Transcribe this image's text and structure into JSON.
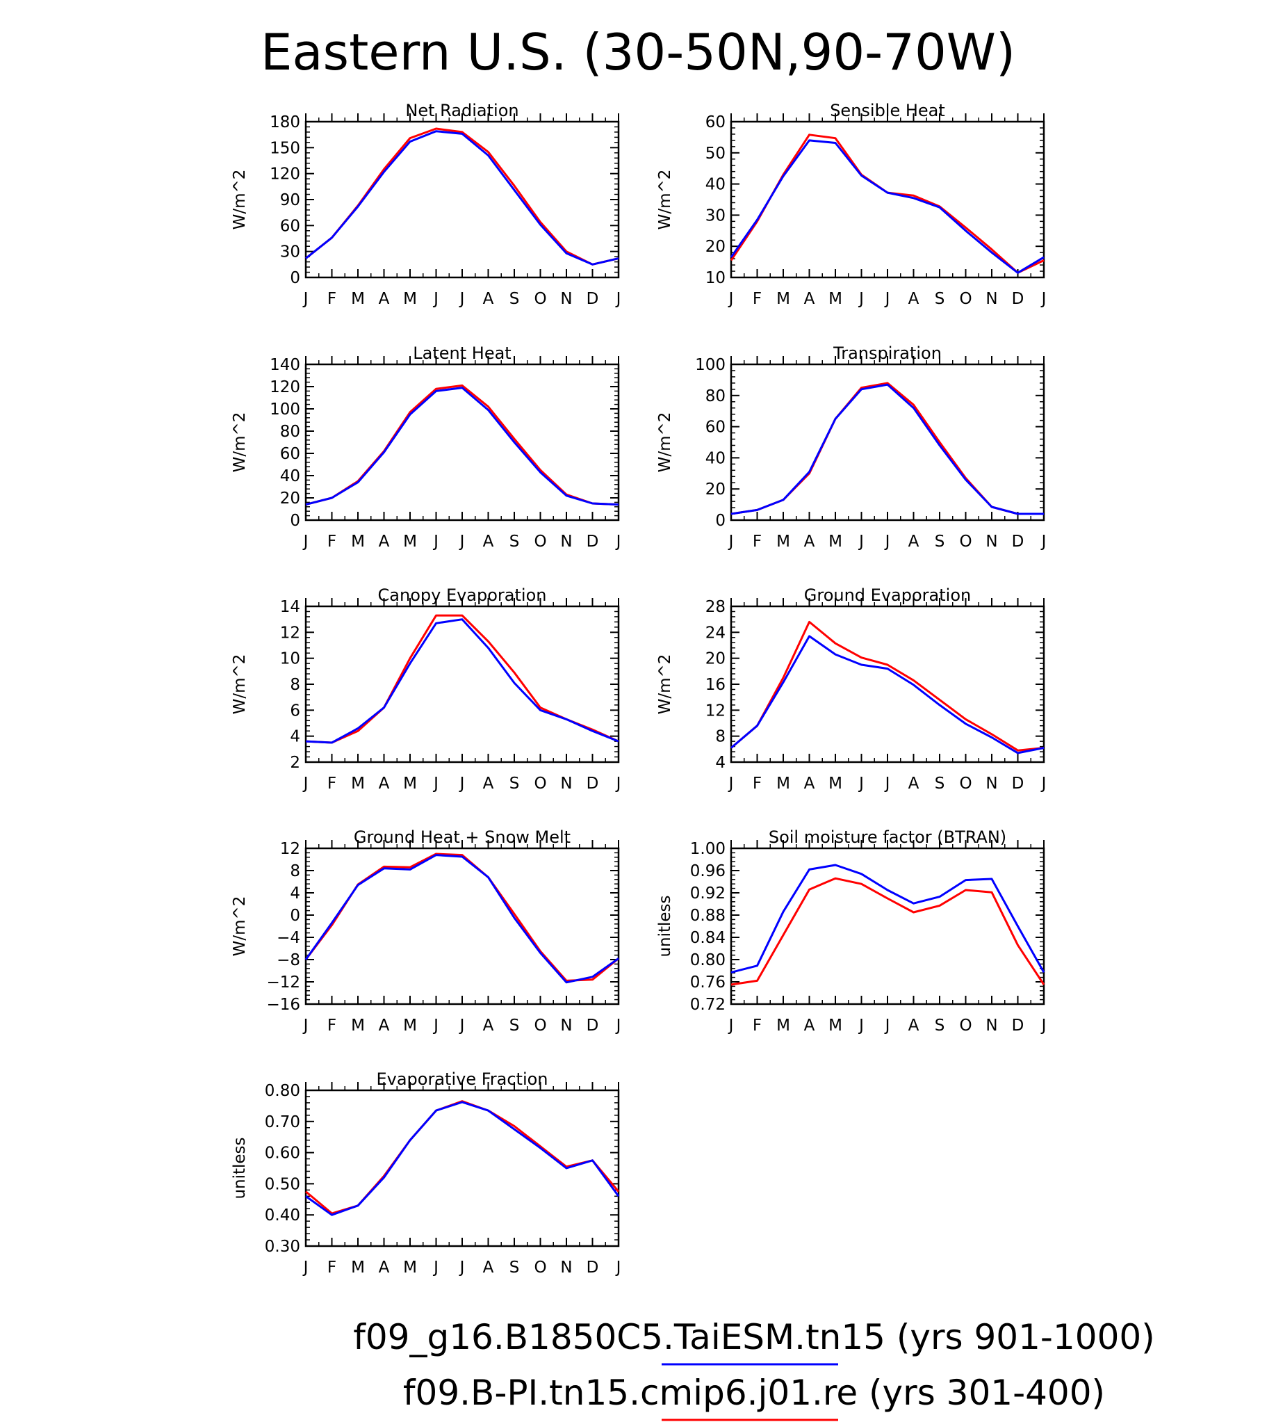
{
  "figure": {
    "title": "Eastern U.S. (30-50N,90-70W)",
    "legend": [
      {
        "label": "f09_g16.B1850C5.TaiESM.tn15 (yrs 901-1000)",
        "color": "#0000ff"
      },
      {
        "label": "f09.B-PI.tn15.cmip6.j01.re (yrs 301-400)",
        "color": "#ff0000"
      }
    ]
  },
  "chart_data": [
    {
      "type": "line",
      "title": "Net Radiation",
      "ylabel": "W/m^2",
      "categories": [
        "J",
        "F",
        "M",
        "A",
        "M",
        "J",
        "J",
        "A",
        "S",
        "O",
        "N",
        "D",
        "J"
      ],
      "ylim": [
        0,
        180
      ],
      "yticks": [
        "0",
        "30",
        "60",
        "90",
        "120",
        "150",
        "180"
      ],
      "series": [
        {
          "color": "#ff0000",
          "values": [
            22,
            46,
            83,
            125,
            161,
            172,
            168,
            145,
            106,
            64,
            30,
            15,
            22
          ]
        },
        {
          "color": "#0000ff",
          "values": [
            22,
            46,
            82,
            122,
            157,
            169,
            166,
            141,
            101,
            61,
            28,
            15,
            22
          ]
        }
      ]
    },
    {
      "type": "line",
      "title": "Sensible Heat",
      "ylabel": "W/m^2",
      "categories": [
        "J",
        "F",
        "M",
        "A",
        "M",
        "J",
        "J",
        "A",
        "S",
        "O",
        "N",
        "D",
        "J"
      ],
      "ylim": [
        10,
        60
      ],
      "yticks": [
        "10",
        "20",
        "30",
        "40",
        "50",
        "60"
      ],
      "series": [
        {
          "color": "#ff0000",
          "values": [
            15.5,
            28,
            43,
            55.8,
            54.7,
            43,
            37.2,
            36.3,
            32.8,
            26,
            19,
            11.5,
            15.5
          ]
        },
        {
          "color": "#0000ff",
          "values": [
            16.5,
            28.5,
            42.5,
            54,
            53.2,
            42.7,
            37.2,
            35.5,
            32.5,
            25,
            18,
            11.5,
            16.5
          ]
        }
      ]
    },
    {
      "type": "line",
      "title": "Latent Heat",
      "ylabel": "W/m^2",
      "categories": [
        "J",
        "F",
        "M",
        "A",
        "M",
        "J",
        "J",
        "A",
        "S",
        "O",
        "N",
        "D",
        "J"
      ],
      "ylim": [
        0,
        140
      ],
      "yticks": [
        "0",
        "20",
        "40",
        "60",
        "80",
        "100",
        "120",
        "140"
      ],
      "series": [
        {
          "color": "#ff0000",
          "values": [
            14,
            20,
            35,
            62,
            97,
            118,
            121,
            102,
            73,
            45,
            23,
            15,
            14
          ]
        },
        {
          "color": "#0000ff",
          "values": [
            14,
            20,
            34,
            61,
            95,
            116,
            119,
            99,
            70,
            43,
            22,
            15,
            14
          ]
        }
      ]
    },
    {
      "type": "line",
      "title": "Transpiration",
      "ylabel": "W/m^2",
      "categories": [
        "J",
        "F",
        "M",
        "A",
        "M",
        "J",
        "J",
        "A",
        "S",
        "O",
        "N",
        "D",
        "J"
      ],
      "ylim": [
        0,
        100
      ],
      "yticks": [
        "0",
        "20",
        "40",
        "60",
        "80",
        "100"
      ],
      "series": [
        {
          "color": "#ff0000",
          "values": [
            4,
            6.5,
            13,
            30,
            65,
            85,
            88,
            74,
            50,
            27,
            8.5,
            4,
            4
          ]
        },
        {
          "color": "#0000ff",
          "values": [
            4,
            6.5,
            13,
            31,
            65,
            84,
            87,
            72,
            48,
            26,
            8.5,
            4,
            4
          ]
        }
      ]
    },
    {
      "type": "line",
      "title": "Canopy Evaporation",
      "ylabel": "W/m^2",
      "categories": [
        "J",
        "F",
        "M",
        "A",
        "M",
        "J",
        "J",
        "A",
        "S",
        "O",
        "N",
        "D",
        "J"
      ],
      "ylim": [
        2,
        14
      ],
      "yticks": [
        "2",
        "4",
        "6",
        "8",
        "10",
        "12",
        "14"
      ],
      "series": [
        {
          "color": "#ff0000",
          "values": [
            3.6,
            3.5,
            4.4,
            6.2,
            10,
            13.3,
            13.3,
            11.3,
            8.9,
            6.2,
            5.3,
            4.5,
            3.6
          ]
        },
        {
          "color": "#0000ff",
          "values": [
            3.6,
            3.5,
            4.6,
            6.2,
            9.6,
            12.7,
            13.0,
            10.8,
            8.1,
            6.0,
            5.3,
            4.4,
            3.6
          ]
        }
      ]
    },
    {
      "type": "line",
      "title": "Ground Evaporation",
      "ylabel": "W/m^2",
      "categories": [
        "J",
        "F",
        "M",
        "A",
        "M",
        "J",
        "J",
        "A",
        "S",
        "O",
        "N",
        "D",
        "J"
      ],
      "ylim": [
        4,
        28
      ],
      "yticks": [
        "4",
        "8",
        "12",
        "16",
        "20",
        "24",
        "28"
      ],
      "series": [
        {
          "color": "#ff0000",
          "values": [
            6.2,
            9.6,
            17,
            25.6,
            22.3,
            20.1,
            19,
            16.6,
            13.6,
            10.6,
            8.3,
            5.8,
            6.2
          ]
        },
        {
          "color": "#0000ff",
          "values": [
            6.2,
            9.6,
            16.3,
            23.4,
            20.6,
            19,
            18.4,
            15.9,
            12.8,
            9.9,
            7.8,
            5.4,
            6.2
          ]
        }
      ]
    },
    {
      "type": "line",
      "title": "Ground Heat + Snow Melt",
      "ylabel": "W/m^2",
      "categories": [
        "J",
        "F",
        "M",
        "A",
        "M",
        "J",
        "J",
        "A",
        "S",
        "O",
        "N",
        "D",
        "J"
      ],
      "ylim": [
        -16,
        12
      ],
      "yticks": [
        "-16",
        "-12",
        "-8",
        "-4",
        "0",
        "4",
        "8",
        "12"
      ],
      "series": [
        {
          "color": "#ff0000",
          "values": [
            -8,
            -1.8,
            5.5,
            8.7,
            8.6,
            11,
            10.8,
            6.8,
            0.2,
            -6.5,
            -11.8,
            -11.6,
            -7.8
          ]
        },
        {
          "color": "#0000ff",
          "values": [
            -8,
            -1.4,
            5.4,
            8.4,
            8.2,
            10.8,
            10.5,
            6.8,
            -0.5,
            -6.8,
            -12.1,
            -11.1,
            -7.8
          ]
        }
      ]
    },
    {
      "type": "line",
      "title": "Soil moisture factor (BTRAN)",
      "ylabel": "unitless",
      "categories": [
        "J",
        "F",
        "M",
        "A",
        "M",
        "J",
        "J",
        "A",
        "S",
        "O",
        "N",
        "D",
        "J"
      ],
      "ylim": [
        0.72,
        1.0
      ],
      "yticks": [
        "0.72",
        "0.76",
        "0.80",
        "0.84",
        "0.88",
        "0.92",
        "0.96",
        "1.00"
      ],
      "series": [
        {
          "color": "#ff0000",
          "values": [
            0.755,
            0.762,
            0.844,
            0.926,
            0.946,
            0.936,
            0.91,
            0.885,
            0.897,
            0.925,
            0.921,
            0.826,
            0.755
          ]
        },
        {
          "color": "#0000ff",
          "values": [
            0.777,
            0.789,
            0.886,
            0.962,
            0.97,
            0.954,
            0.925,
            0.901,
            0.913,
            0.943,
            0.945,
            0.86,
            0.777
          ]
        }
      ]
    },
    {
      "type": "line",
      "title": "Evaporative Fraction",
      "ylabel": "unitless",
      "categories": [
        "J",
        "F",
        "M",
        "A",
        "M",
        "J",
        "J",
        "A",
        "S",
        "O",
        "N",
        "D",
        "J"
      ],
      "ylim": [
        0.3,
        0.8
      ],
      "yticks": [
        "0.30",
        "0.40",
        "0.50",
        "0.60",
        "0.70",
        "0.80"
      ],
      "series": [
        {
          "color": "#ff0000",
          "values": [
            0.475,
            0.405,
            0.43,
            0.525,
            0.64,
            0.735,
            0.765,
            0.735,
            0.685,
            0.62,
            0.555,
            0.575,
            0.475
          ]
        },
        {
          "color": "#0000ff",
          "values": [
            0.46,
            0.4,
            0.43,
            0.52,
            0.64,
            0.735,
            0.762,
            0.735,
            0.675,
            0.615,
            0.55,
            0.575,
            0.46
          ]
        }
      ]
    }
  ]
}
